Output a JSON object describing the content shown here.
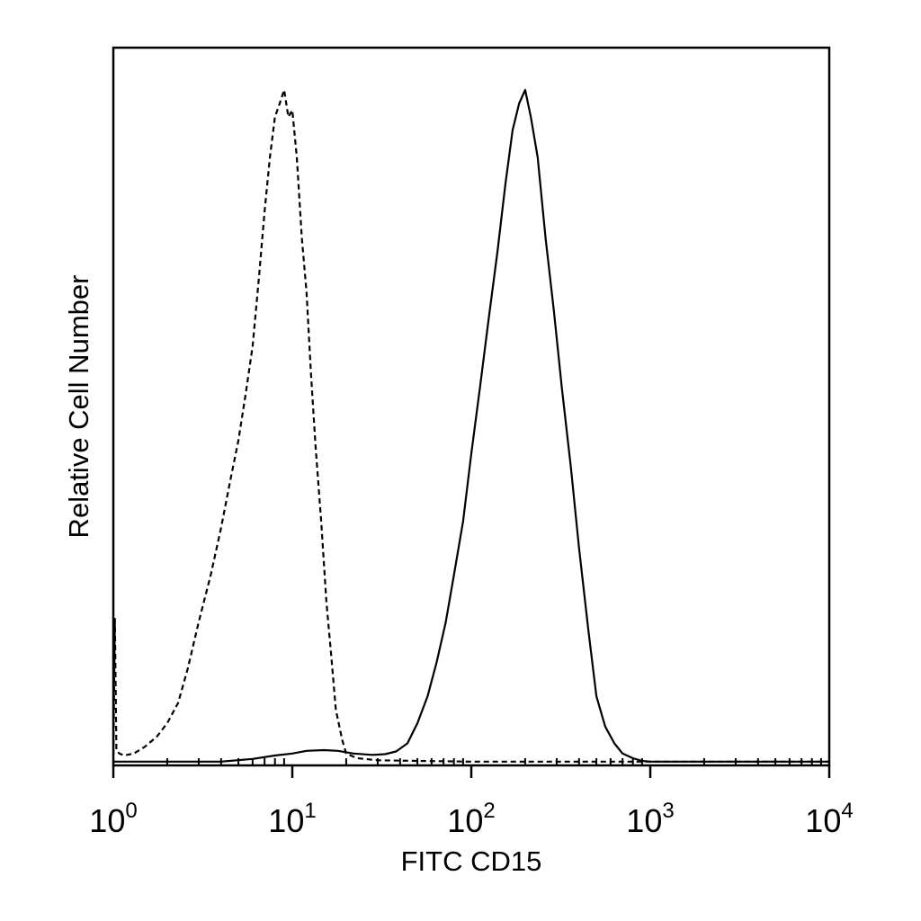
{
  "chart_data": {
    "type": "line",
    "title": "",
    "xlabel": "FITC CD15",
    "ylabel": "Relative Cell Number",
    "x_scale": "log",
    "xlim": [
      1,
      10000
    ],
    "ylim": [
      0,
      100
    ],
    "grid": false,
    "legend": "none",
    "x_ticks": [
      {
        "value": 1,
        "base": "10",
        "exp": "0"
      },
      {
        "value": 10,
        "base": "10",
        "exp": "1"
      },
      {
        "value": 100,
        "base": "10",
        "exp": "2"
      },
      {
        "value": 1000,
        "base": "10",
        "exp": "3"
      },
      {
        "value": 10000,
        "base": "10",
        "exp": "4"
      }
    ],
    "series": [
      {
        "style": "dashed",
        "color": "#000000",
        "points": [
          [
            1.0,
            0
          ],
          [
            1.02,
            21.5
          ],
          [
            1.04,
            2.0
          ],
          [
            1.08,
            1.5
          ],
          [
            1.15,
            1.2
          ],
          [
            1.3,
            1.5
          ],
          [
            1.5,
            2.5
          ],
          [
            1.75,
            4.0
          ],
          [
            2.0,
            6.0
          ],
          [
            2.3,
            9.0
          ],
          [
            2.6,
            14.0
          ],
          [
            3.0,
            21.0
          ],
          [
            3.5,
            28.0
          ],
          [
            4.0,
            35.0
          ],
          [
            4.5,
            42.0
          ],
          [
            5.0,
            48.0
          ],
          [
            5.5,
            55.0
          ],
          [
            6.0,
            62.0
          ],
          [
            6.5,
            72.0
          ],
          [
            7.0,
            82.0
          ],
          [
            7.5,
            90.0
          ],
          [
            8.0,
            96.0
          ],
          [
            8.5,
            98.0
          ],
          [
            9.0,
            100.0
          ],
          [
            9.5,
            96.0
          ],
          [
            10.0,
            97.0
          ],
          [
            10.6,
            90.0
          ],
          [
            11.3,
            78.0
          ],
          [
            12.0,
            70.0
          ],
          [
            12.7,
            58.0
          ],
          [
            13.5,
            47.0
          ],
          [
            14.5,
            36.0
          ],
          [
            15.5,
            24.0
          ],
          [
            16.5,
            16.0
          ],
          [
            17.5,
            8.0
          ],
          [
            19.0,
            3.5
          ],
          [
            20.0,
            1.5
          ],
          [
            23.0,
            0.8
          ],
          [
            30.0,
            0.5
          ],
          [
            50.0,
            0.4
          ],
          [
            100.0,
            0.3
          ],
          [
            300.0,
            0.3
          ],
          [
            800.0,
            0.3
          ],
          [
            1000.0,
            0.3
          ],
          [
            10000.0,
            0.3
          ]
        ]
      },
      {
        "style": "solid",
        "color": "#000000",
        "points": [
          [
            1.0,
            0.3
          ],
          [
            2.0,
            0.3
          ],
          [
            4.0,
            0.3
          ],
          [
            6.0,
            0.7
          ],
          [
            8.0,
            1.2
          ],
          [
            10.0,
            1.5
          ],
          [
            12.0,
            1.9
          ],
          [
            15.0,
            2.0
          ],
          [
            18.0,
            1.9
          ],
          [
            22.0,
            1.5
          ],
          [
            28.0,
            1.3
          ],
          [
            33.0,
            1.4
          ],
          [
            38.0,
            1.8
          ],
          [
            44.0,
            3.0
          ],
          [
            50.0,
            6.0
          ],
          [
            57.0,
            10.0
          ],
          [
            64.0,
            15.0
          ],
          [
            72.0,
            21.0
          ],
          [
            80.0,
            28.0
          ],
          [
            90.0,
            36.0
          ],
          [
            100.0,
            46.0
          ],
          [
            112.0,
            56.0
          ],
          [
            125.0,
            66.0
          ],
          [
            140.0,
            76.0
          ],
          [
            155.0,
            86.0
          ],
          [
            170.0,
            94.0
          ],
          [
            185.0,
            98.0
          ],
          [
            200.0,
            100.0
          ],
          [
            215.0,
            96.0
          ],
          [
            235.0,
            90.0
          ],
          [
            260.0,
            78.0
          ],
          [
            290.0,
            67.0
          ],
          [
            320.0,
            56.0
          ],
          [
            360.0,
            44.0
          ],
          [
            400.0,
            32.0
          ],
          [
            450.0,
            20.0
          ],
          [
            500.0,
            10.0
          ],
          [
            560.0,
            5.5
          ],
          [
            630.0,
            3.0
          ],
          [
            700.0,
            1.5
          ],
          [
            800.0,
            0.8
          ],
          [
            900.0,
            0.4
          ],
          [
            1000.0,
            0.3
          ],
          [
            10000.0,
            0.3
          ]
        ]
      }
    ]
  }
}
